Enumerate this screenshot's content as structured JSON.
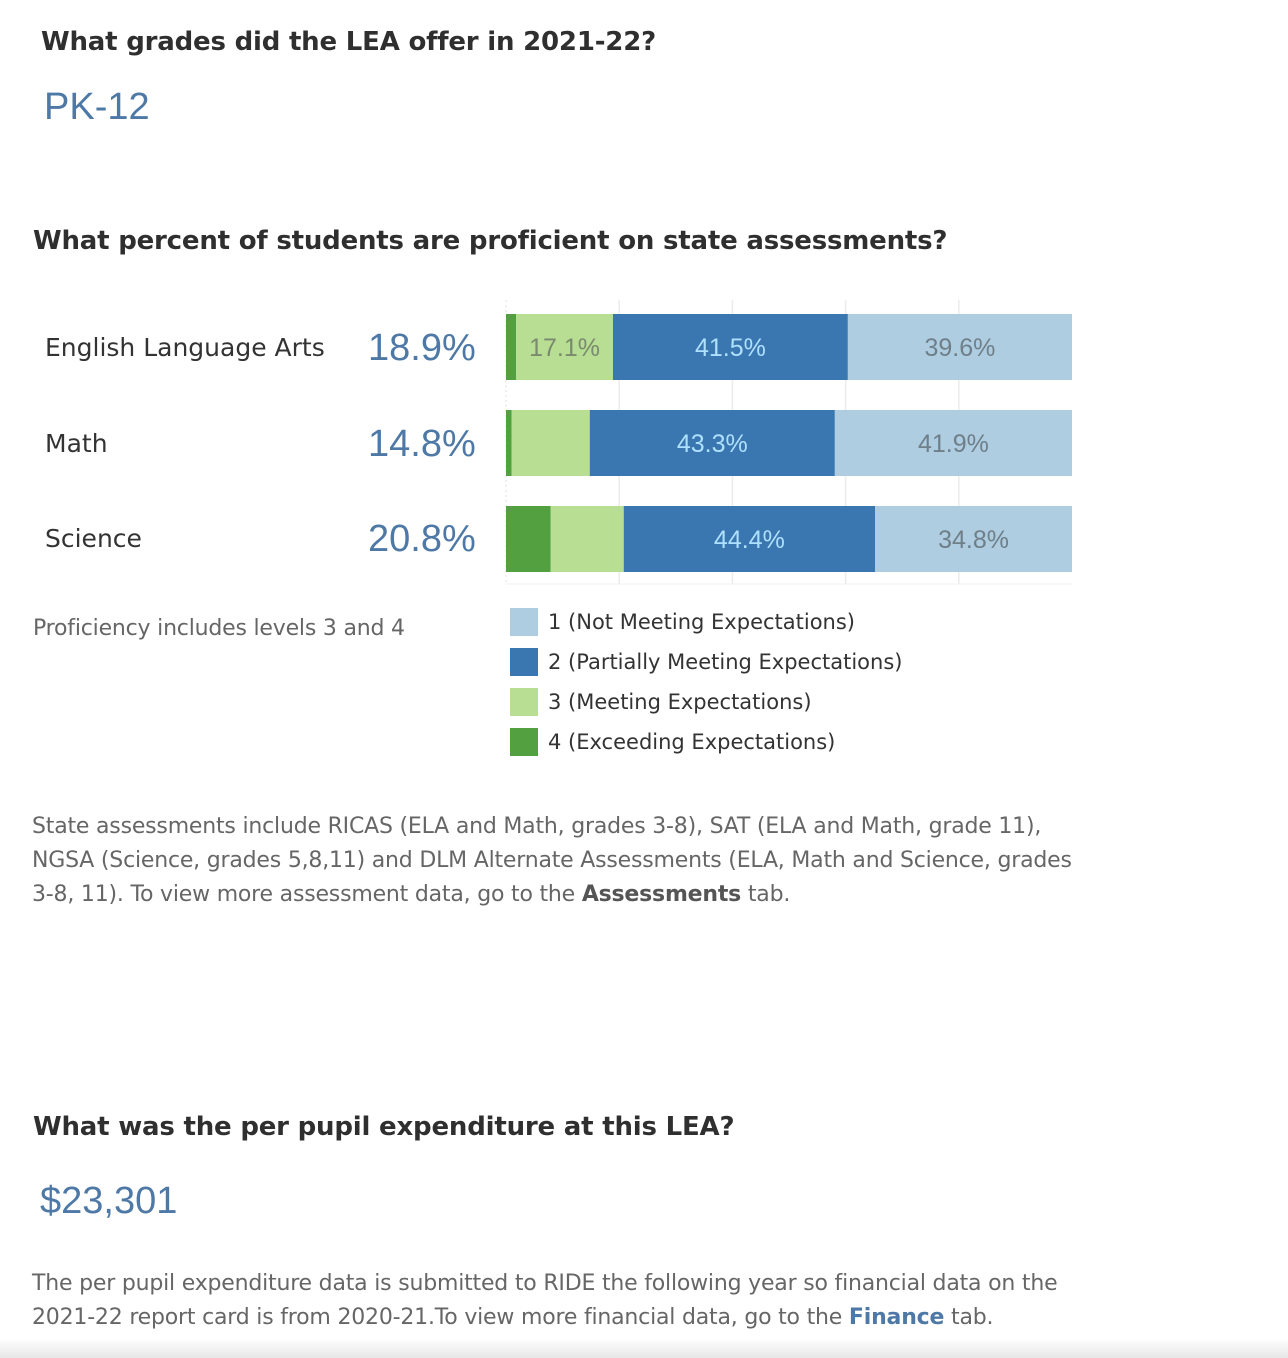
{
  "grades": {
    "question": "What grades did the LEA offer in 2021-22?",
    "value": "PK-12"
  },
  "proficiency": {
    "question": "What percent of students are proficient on state assessments?",
    "subjects": [
      {
        "label": "English Language Arts",
        "proficient_pct": "18.9%"
      },
      {
        "label": "Math",
        "proficient_pct": "14.8%"
      },
      {
        "label": "Science",
        "proficient_pct": "20.8%"
      }
    ],
    "note": "Proficiency includes levels 3 and 4",
    "legend": [
      {
        "label": "1 (Not Meeting Expectations)",
        "color": "#aecde0"
      },
      {
        "label": "2 (Partially Meeting Expectations)",
        "color": "#3a76af"
      },
      {
        "label": "3 (Meeting Expectations)",
        "color": "#b7de93"
      },
      {
        "label": "4 (Exceeding Expectations)",
        "color": "#52a03f"
      }
    ],
    "footnote": {
      "text": "State assessments include RICAS (ELA and Math, grades 3-8), SAT (ELA and Math, grade 11), NGSA (Science, grades 5,8,11) and DLM Alternate Assessments (ELA, Math and Science, grades 3-8, 11). To view more assessment data, go to the ",
      "link": "Assessments",
      "suffix": " tab."
    }
  },
  "chart_data": {
    "type": "bar",
    "orientation": "horizontal",
    "stacked": true,
    "normalized": true,
    "categories": [
      "English Language Arts",
      "Math",
      "Science"
    ],
    "stack_order": [
      "4 (Exceeding Expectations)",
      "3 (Meeting Expectations)",
      "2 (Partially Meeting Expectations)",
      "1 (Not Meeting Expectations)"
    ],
    "series": [
      {
        "name": "4 (Exceeding Expectations)",
        "color": "#52a03f",
        "values": [
          1.8,
          1.0,
          7.9
        ],
        "labels": [
          "",
          "",
          ""
        ]
      },
      {
        "name": "3 (Meeting Expectations)",
        "color": "#b7de93",
        "values": [
          17.1,
          13.8,
          12.9
        ],
        "labels": [
          "17.1%",
          "",
          ""
        ]
      },
      {
        "name": "2 (Partially Meeting Expectations)",
        "color": "#3a76af",
        "values": [
          41.5,
          43.3,
          44.4
        ],
        "labels": [
          "41.5%",
          "43.3%",
          "44.4%"
        ]
      },
      {
        "name": "1 (Not Meeting Expectations)",
        "color": "#aecde0",
        "values": [
          39.6,
          41.9,
          34.8
        ],
        "labels": [
          "39.6%",
          "41.9%",
          "34.8%"
        ]
      }
    ],
    "xlim": [
      0,
      100
    ],
    "gridlines": [
      0,
      20,
      40,
      60,
      80
    ],
    "grid": true,
    "legend_position": "bottom-left",
    "title": "",
    "xlabel": "",
    "ylabel": ""
  },
  "expenditure": {
    "question": "What was the per pupil expenditure at this LEA?",
    "value": "$23,301",
    "note": {
      "text": "The per pupil expenditure data is submitted to RIDE the following year so financial data on the 2021-22 report card is from 2020-21.To view more financial data, go to the ",
      "link": "Finance",
      "suffix": " tab."
    }
  }
}
